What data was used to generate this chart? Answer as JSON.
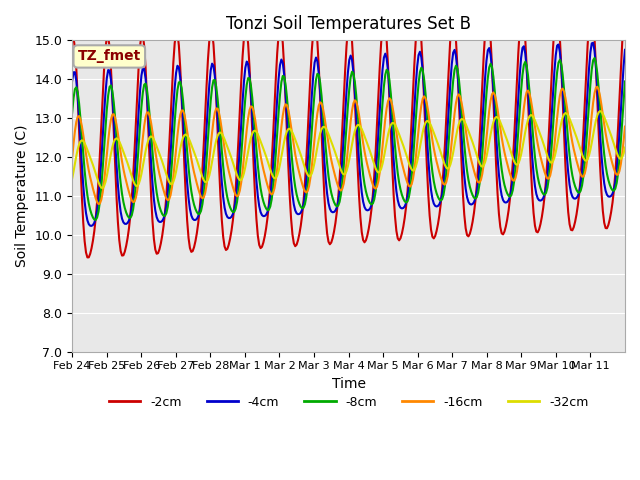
{
  "title": "Tonzi Soil Temperatures Set B",
  "xlabel": "Time",
  "ylabel": "Soil Temperature (C)",
  "ylim": [
    7.0,
    15.0
  ],
  "yticks": [
    7.0,
    8.0,
    9.0,
    10.0,
    11.0,
    12.0,
    13.0,
    14.0,
    15.0
  ],
  "bg_color": "#e8e8e8",
  "line_colors": {
    "-2cm": "#cc0000",
    "-4cm": "#0000cc",
    "-8cm": "#00aa00",
    "-16cm": "#ff8800",
    "-32cm": "#dddd00"
  },
  "legend_label": "TZ_fmet",
  "legend_box_color": "#ffffcc",
  "legend_box_edge": "#888800",
  "n_points": 400
}
